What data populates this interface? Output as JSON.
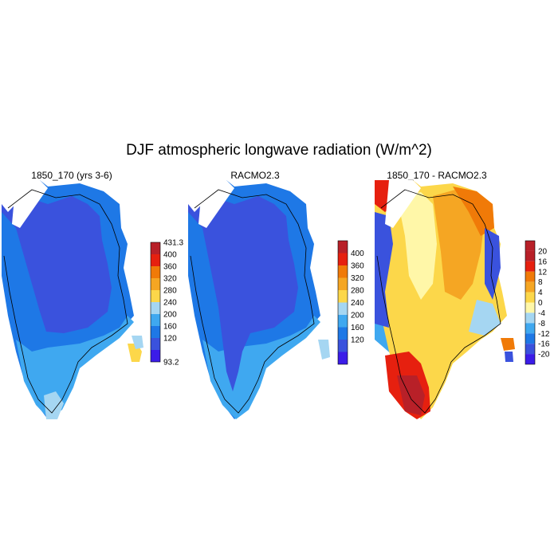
{
  "title": "DJF atmospheric longwave radiation (W/m^2)",
  "panels": [
    {
      "id": "p1",
      "title": "1850_170 (yrs 3-6)",
      "colorbar": {
        "min_label": "93.2",
        "max_label": "431.3",
        "levels": [
          "400",
          "360",
          "320",
          "280",
          "240",
          "200",
          "160",
          "120"
        ],
        "colors": [
          "#3b1ce8",
          "#3a52dd",
          "#1e78e6",
          "#3fa8f0",
          "#a5d6f2",
          "#fcd74a",
          "#f5a623",
          "#f07a08",
          "#e6200f",
          "#b82028"
        ]
      }
    },
    {
      "id": "p2",
      "title": "RACMO2.3",
      "colorbar": {
        "min_label": "",
        "max_label": "",
        "levels": [
          "400",
          "360",
          "320",
          "280",
          "240",
          "200",
          "160",
          "120"
        ],
        "colors": [
          "#3b1ce8",
          "#3a52dd",
          "#1e78e6",
          "#3fa8f0",
          "#a5d6f2",
          "#fcd74a",
          "#f5a623",
          "#f07a08",
          "#e6200f",
          "#b82028"
        ]
      }
    },
    {
      "id": "p3",
      "title": "1850_170 - RACMO2.3",
      "colorbar": {
        "min_label": "",
        "max_label": "",
        "levels": [
          "20",
          "16",
          "12",
          "8",
          "4",
          "0",
          "-4",
          "-8",
          "-12",
          "-16",
          "-20"
        ],
        "colors": [
          "#3b1ce8",
          "#3a52dd",
          "#1e78e6",
          "#3fa8f0",
          "#a5d6f2",
          "#fff7a8",
          "#fcd74a",
          "#f5a623",
          "#f07a08",
          "#e6200f",
          "#b82028",
          "#b82028"
        ]
      }
    }
  ],
  "palette": {
    "deep_blue": "#3a52dd",
    "mid_blue": "#1e78e6",
    "light_blue": "#3fa8f0",
    "pale_blue": "#a5d6f2",
    "pale_yellow": "#fff7a8",
    "yellow": "#fcd74a",
    "orange": "#f5a623",
    "dark_orange": "#f07a08",
    "red": "#e6200f",
    "dark_red": "#b82028"
  }
}
